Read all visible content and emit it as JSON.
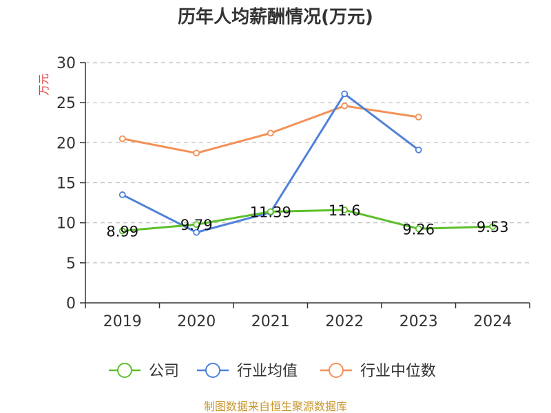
{
  "chart_data": {
    "type": "line",
    "title": "历年人均薪酬情况(万元)",
    "ylabel": "万元",
    "xlabel": "",
    "categories": [
      "2019",
      "2020",
      "2021",
      "2022",
      "2023",
      "2024"
    ],
    "ylim": [
      0,
      30
    ],
    "yticks": [
      0,
      5,
      10,
      15,
      20,
      25,
      30
    ],
    "grid": true,
    "legend_position": "bottom",
    "series": [
      {
        "name": "公司",
        "color": "#5cbf2a",
        "values": [
          8.99,
          9.79,
          11.39,
          11.6,
          9.26,
          9.53
        ],
        "labels": [
          "8.99",
          "9.79",
          "11.39",
          "11.6",
          "9.26",
          "9.53"
        ]
      },
      {
        "name": "行业均值",
        "color": "#4f81d9",
        "values": [
          13.5,
          8.8,
          11.3,
          26.1,
          19.1,
          null
        ]
      },
      {
        "name": "行业中位数",
        "color": "#f39158",
        "values": [
          20.5,
          18.7,
          21.2,
          24.6,
          23.2,
          null
        ]
      }
    ]
  },
  "colors": {
    "ylabel": "#e03a3a",
    "source": "#c8962e",
    "axis": "#333333",
    "grid": "#bbbbbb"
  },
  "source": "制图数据来自恒生聚源数据库"
}
